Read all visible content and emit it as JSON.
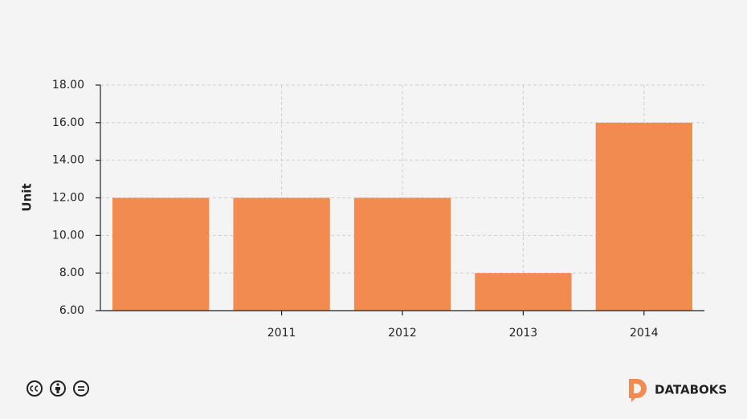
{
  "chart_data": {
    "type": "bar",
    "y_label": "Unit",
    "categories": [
      null,
      "2011",
      "2012",
      "2013",
      "2014"
    ],
    "values": [
      12,
      12,
      12,
      8,
      16
    ],
    "color": "#f28b4f",
    "ylim": [
      6,
      18
    ],
    "yticks": [
      {
        "value": 6,
        "label": "6.00"
      },
      {
        "value": 8,
        "label": "8.00"
      },
      {
        "value": 10,
        "label": "10.00"
      },
      {
        "value": 12,
        "label": "12.00"
      },
      {
        "value": 14,
        "label": "14.00"
      },
      {
        "value": 16,
        "label": "16.00"
      },
      {
        "value": 18,
        "label": "18.00"
      }
    ],
    "grid": true
  },
  "brand": "DATABOKS"
}
